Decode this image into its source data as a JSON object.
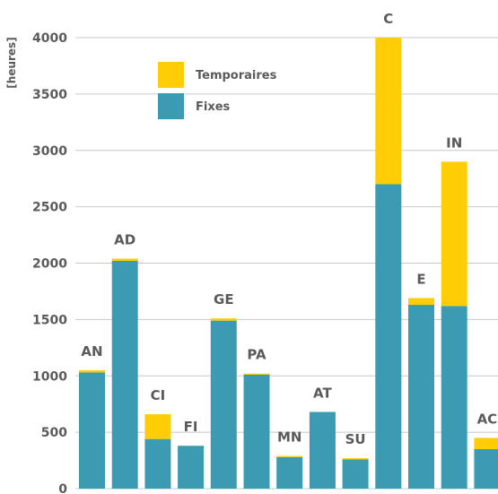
{
  "chart_data": {
    "type": "bar",
    "stacked": true,
    "categories": [
      "AN",
      "AD",
      "CI",
      "FI",
      "GE",
      "PA",
      "MN",
      "AT",
      "SU",
      "C",
      "E",
      "IN",
      "AC"
    ],
    "series": [
      {
        "name": "Fixes",
        "color": "#3a9bb3",
        "values": [
          1030,
          2020,
          440,
          380,
          1490,
          1010,
          280,
          680,
          260,
          2700,
          1630,
          1620,
          350
        ]
      },
      {
        "name": "Temporaires",
        "color": "#ffcd05",
        "values": [
          20,
          20,
          220,
          0,
          20,
          10,
          10,
          0,
          10,
          1300,
          60,
          1280,
          100
        ]
      }
    ],
    "ylabel": "[heures]",
    "ylim": [
      0,
      4000
    ],
    "yticks": [
      0,
      500,
      1000,
      1500,
      2000,
      2500,
      3000,
      3500,
      4000
    ],
    "grid": true,
    "legend": {
      "position": "top-left",
      "entries": [
        "Temporaires",
        "Fixes"
      ]
    }
  }
}
